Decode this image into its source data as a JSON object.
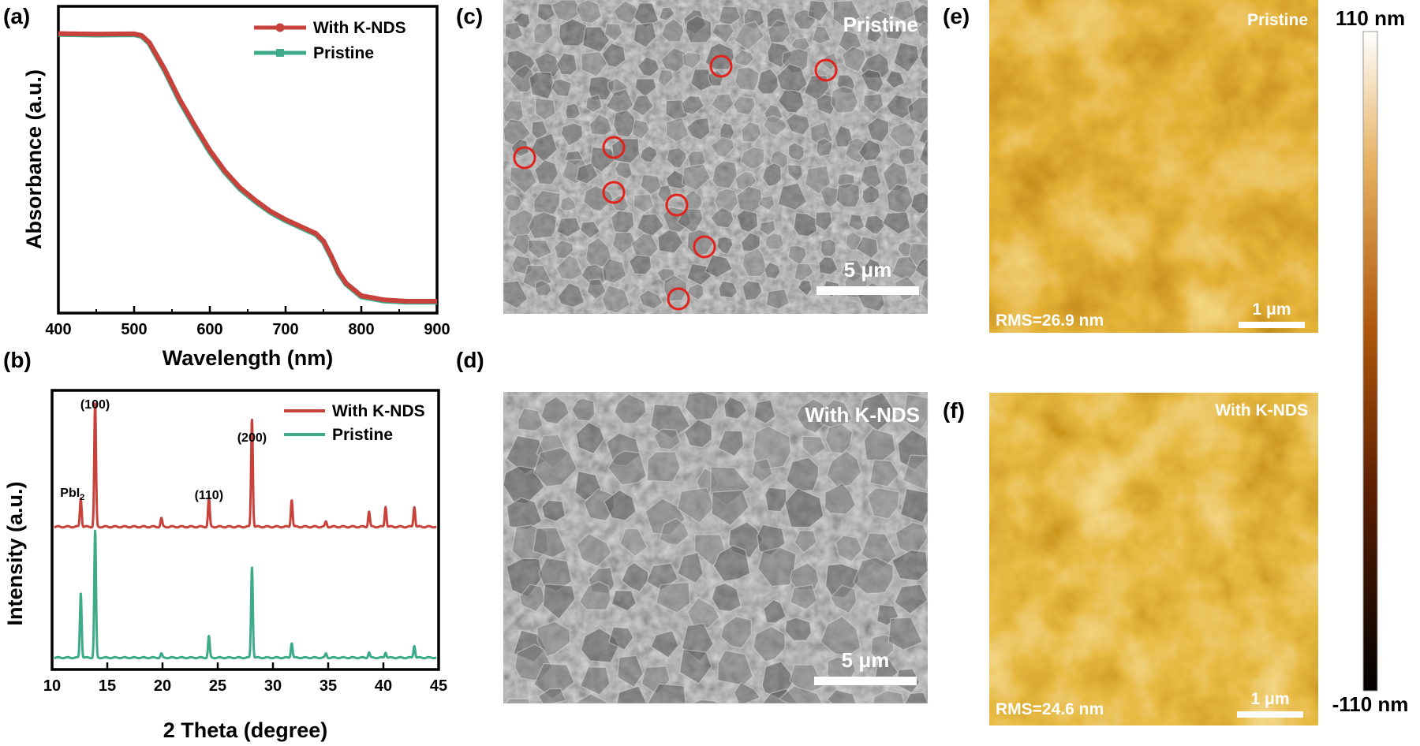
{
  "panel_labels": {
    "a": "(a)",
    "b": "(b)",
    "c": "(c)",
    "d": "(d)",
    "e": "(e)",
    "f": "(f)"
  },
  "colors": {
    "k_nds": "#c8413b",
    "pristine": "#3dab8a"
  },
  "chart_data": [
    {
      "id": "a",
      "type": "line",
      "xlabel": "Wavelength (nm)",
      "ylabel": "Absorbance (a.u.)",
      "xlim": [
        400,
        900
      ],
      "ylim": [
        0,
        1
      ],
      "xticks": [
        400,
        500,
        600,
        700,
        800,
        900
      ],
      "legend_position": "top-right",
      "series": [
        {
          "name": "With K-NDS",
          "x": [
            400,
            450,
            500,
            510,
            520,
            540,
            560,
            580,
            600,
            620,
            640,
            660,
            680,
            700,
            720,
            740,
            750,
            760,
            770,
            780,
            800,
            830,
            860,
            900
          ],
          "y": [
            0.987,
            0.985,
            0.986,
            0.98,
            0.955,
            0.86,
            0.75,
            0.655,
            0.565,
            0.49,
            0.43,
            0.385,
            0.345,
            0.315,
            0.29,
            0.265,
            0.238,
            0.185,
            0.125,
            0.085,
            0.04,
            0.025,
            0.02,
            0.02
          ]
        },
        {
          "name": "Pristine",
          "x": [
            400,
            450,
            500,
            510,
            520,
            540,
            560,
            580,
            600,
            620,
            640,
            660,
            680,
            700,
            720,
            740,
            750,
            760,
            770,
            780,
            800,
            830,
            860,
            900
          ],
          "y": [
            0.985,
            0.983,
            0.984,
            0.978,
            0.952,
            0.856,
            0.745,
            0.65,
            0.56,
            0.486,
            0.426,
            0.381,
            0.342,
            0.312,
            0.287,
            0.262,
            0.235,
            0.182,
            0.122,
            0.082,
            0.037,
            0.022,
            0.018,
            0.018
          ]
        }
      ]
    },
    {
      "id": "b",
      "type": "line",
      "xlabel": "2 Theta (degree)",
      "ylabel": "Intensity (a.u.)",
      "xlim": [
        10,
        45
      ],
      "xticks": [
        10,
        15,
        20,
        25,
        30,
        35,
        40,
        45
      ],
      "legend_position": "top-right",
      "annotations": [
        {
          "text": "PbI",
          "sub": "2",
          "x": 12.7
        },
        {
          "text": "(100)",
          "x": 13.9
        },
        {
          "text": "(110)",
          "x": 24.2
        },
        {
          "text": "(200)",
          "x": 28.1
        }
      ],
      "series": [
        {
          "name": "With K-NDS",
          "peaks": [
            {
              "x": 12.6,
              "h": 0.17
            },
            {
              "x": 13.9,
              "h": 0.73
            },
            {
              "x": 19.9,
              "h": 0.05
            },
            {
              "x": 24.2,
              "h": 0.17
            },
            {
              "x": 28.1,
              "h": 0.64
            },
            {
              "x": 31.7,
              "h": 0.16
            },
            {
              "x": 34.8,
              "h": 0.03
            },
            {
              "x": 38.7,
              "h": 0.09
            },
            {
              "x": 40.2,
              "h": 0.12
            },
            {
              "x": 42.8,
              "h": 0.12
            }
          ]
        },
        {
          "name": "Pristine",
          "peaks": [
            {
              "x": 12.6,
              "h": 0.48
            },
            {
              "x": 13.9,
              "h": 0.95
            },
            {
              "x": 19.9,
              "h": 0.03
            },
            {
              "x": 24.2,
              "h": 0.16
            },
            {
              "x": 28.1,
              "h": 0.68
            },
            {
              "x": 31.7,
              "h": 0.11
            },
            {
              "x": 34.8,
              "h": 0.03
            },
            {
              "x": 38.7,
              "h": 0.04
            },
            {
              "x": 40.2,
              "h": 0.04
            },
            {
              "x": 42.8,
              "h": 0.09
            }
          ]
        }
      ]
    }
  ],
  "sem": {
    "c": {
      "label": "Pristine",
      "scale": "5 μm"
    },
    "d": {
      "label": "With K-NDS",
      "scale": "5 μm"
    }
  },
  "afm": {
    "e": {
      "label": "Pristine",
      "rms": "RMS=26.9 nm",
      "scale": "1 μm"
    },
    "f": {
      "label": "With K-NDS",
      "rms": "RMS=24.6 nm",
      "scale": "1 μm"
    }
  },
  "colorbar": {
    "max": "110 nm",
    "min": "-110 nm"
  }
}
